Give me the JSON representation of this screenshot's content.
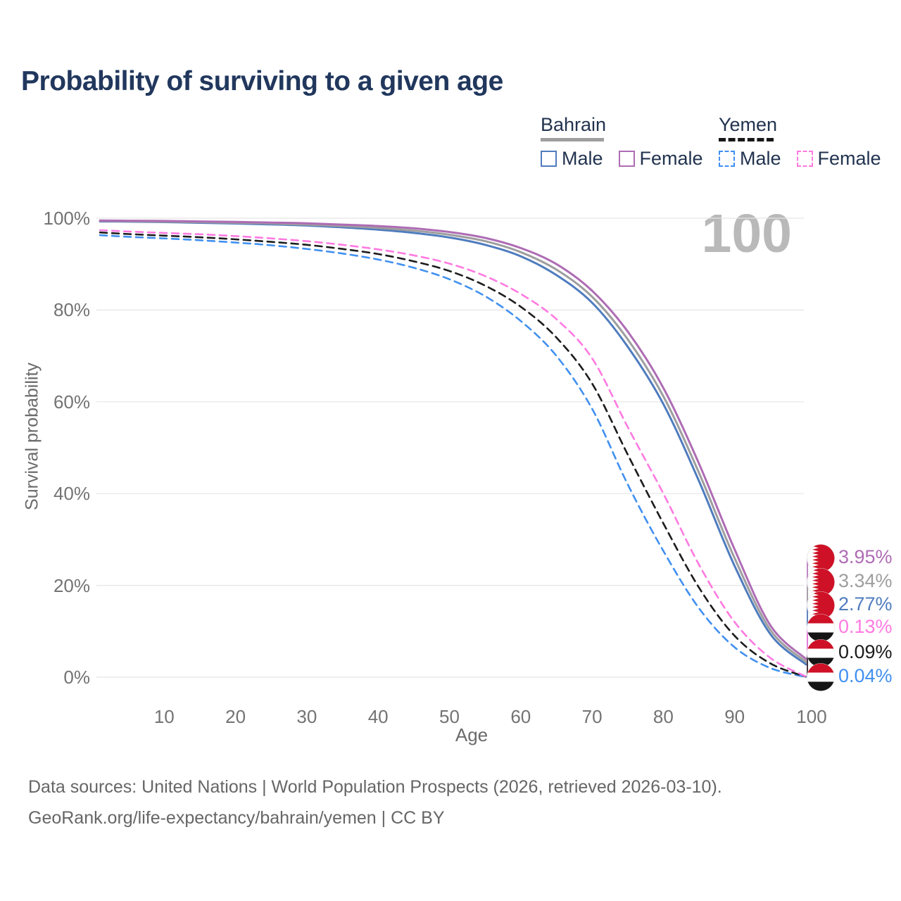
{
  "header": {
    "title": "Probability of surviving to a given age"
  },
  "watermark": "100",
  "legend": {
    "groups": [
      {
        "label": "Bahrain",
        "line_style": "solid",
        "underline_color": "#9e9e9e",
        "items": [
          {
            "label": "Male",
            "color": "#4f7cbe"
          },
          {
            "label": "Female",
            "color": "#ae6cb4"
          }
        ]
      },
      {
        "label": "Yemen",
        "line_style": "dashed",
        "underline_color": "#171717",
        "items": [
          {
            "label": "Male",
            "color": "#4190f0"
          },
          {
            "label": "Female",
            "color": "#ff7ae1"
          }
        ]
      }
    ]
  },
  "chart_data": {
    "type": "line",
    "title": "Probability of surviving to a given age",
    "xlabel": "Age",
    "ylabel": "Survival probability",
    "xlim": [
      0,
      100
    ],
    "ylim": [
      0,
      100
    ],
    "grid": "horizontal",
    "age_counter": "100",
    "x_ticks": [
      {
        "age": 10,
        "label": "10"
      },
      {
        "age": 20,
        "label": "20"
      },
      {
        "age": 30,
        "label": "30"
      },
      {
        "age": 40,
        "label": "40"
      },
      {
        "age": 50,
        "label": "50"
      },
      {
        "age": 60,
        "label": "60"
      },
      {
        "age": 70,
        "label": "70"
      },
      {
        "age": 80,
        "label": "80"
      },
      {
        "age": 90,
        "label": "90"
      },
      {
        "age": 100,
        "label": "100"
      }
    ],
    "y_ticks": [
      {
        "pct": 0,
        "label": "0%"
      },
      {
        "pct": 20,
        "label": "20%"
      },
      {
        "pct": 40,
        "label": "40%"
      },
      {
        "pct": 60,
        "label": "60%"
      },
      {
        "pct": 80,
        "label": "80%"
      },
      {
        "pct": 100,
        "label": "100%"
      }
    ],
    "ages": [
      1,
      5,
      10,
      15,
      20,
      25,
      30,
      35,
      40,
      45,
      50,
      55,
      60,
      65,
      70,
      75,
      80,
      85,
      90,
      95,
      100
    ],
    "series": [
      {
        "name": "Yemen Male",
        "country": "Yemen",
        "sex": "Male",
        "color": "#4190f0",
        "dash": "dashed",
        "flag": "yemen",
        "end_label": "0.04%",
        "values": [
          96.3,
          95.95,
          95.6,
          95.2,
          94.7,
          94.1,
          93.3,
          92.3,
          91.0,
          89.2,
          86.7,
          83.0,
          77.6,
          70.0,
          58.5,
          42.0,
          27.5,
          15.0,
          6.5,
          2.0,
          0.04
        ]
      },
      {
        "name": "Yemen Both sexes",
        "country": "Yemen",
        "sex": "Both",
        "color": "#1c1c1c",
        "dash": "dashed",
        "flag": "yemen",
        "end_label": "0.09%",
        "values": [
          96.9,
          96.55,
          96.2,
          95.85,
          95.4,
          94.85,
          94.2,
          93.3,
          92.2,
          90.6,
          88.5,
          85.3,
          80.7,
          74.0,
          64.0,
          48.5,
          33.5,
          19.5,
          9.0,
          3.0,
          0.09
        ]
      },
      {
        "name": "Yemen Female",
        "country": "Yemen",
        "sex": "Female",
        "color": "#ff7ae1",
        "dash": "dashed",
        "flag": "yemen",
        "end_label": "0.13%",
        "values": [
          97.4,
          97.1,
          96.8,
          96.5,
          96.1,
          95.6,
          95.0,
          94.2,
          93.2,
          91.9,
          90.1,
          87.4,
          83.5,
          78.0,
          69.5,
          54.5,
          40.0,
          24.5,
          12.0,
          4.2,
          0.13
        ]
      },
      {
        "name": "Bahrain Male",
        "country": "Bahrain",
        "sex": "Male",
        "color": "#4f7cbe",
        "dash": "solid",
        "flag": "bahrain",
        "end_label": "2.77%",
        "values": [
          99.3,
          99.25,
          99.15,
          99.0,
          98.85,
          98.65,
          98.4,
          98.0,
          97.5,
          96.8,
          95.8,
          94.2,
          91.7,
          87.6,
          81.6,
          72.0,
          59.5,
          42.7,
          24.2,
          9.4,
          2.77
        ]
      },
      {
        "name": "Bahrain Both sexes",
        "country": "Bahrain",
        "sex": "Both",
        "color": "#9e9e9e",
        "dash": "solid",
        "flag": "bahrain",
        "end_label": "3.34%",
        "values": [
          99.4,
          99.35,
          99.25,
          99.15,
          99.0,
          98.85,
          98.6,
          98.3,
          97.9,
          97.3,
          96.4,
          95.0,
          92.6,
          88.8,
          82.9,
          73.6,
          61.2,
          44.5,
          25.9,
          10.3,
          3.34
        ]
      },
      {
        "name": "Bahrain Female",
        "country": "Bahrain",
        "sex": "Female",
        "color": "#ae6cb4",
        "dash": "solid",
        "flag": "bahrain",
        "end_label": "3.95%",
        "values": [
          99.5,
          99.45,
          99.4,
          99.3,
          99.2,
          99.05,
          98.9,
          98.6,
          98.3,
          97.8,
          97.0,
          95.7,
          93.5,
          90.0,
          84.2,
          75.3,
          63.0,
          46.5,
          27.8,
          11.3,
          3.95
        ]
      }
    ],
    "end_label_order_top_to_bottom": [
      "Bahrain Female",
      "Bahrain Both sexes",
      "Bahrain Male",
      "Yemen Female",
      "Yemen Both sexes",
      "Yemen Male"
    ]
  },
  "footer": {
    "line1": "Data sources: United Nations | World Population Prospects (2026, retrieved 2026-03-10).",
    "line2": "GeoRank.org/life-expectancy/bahrain/yemen | CC BY"
  }
}
